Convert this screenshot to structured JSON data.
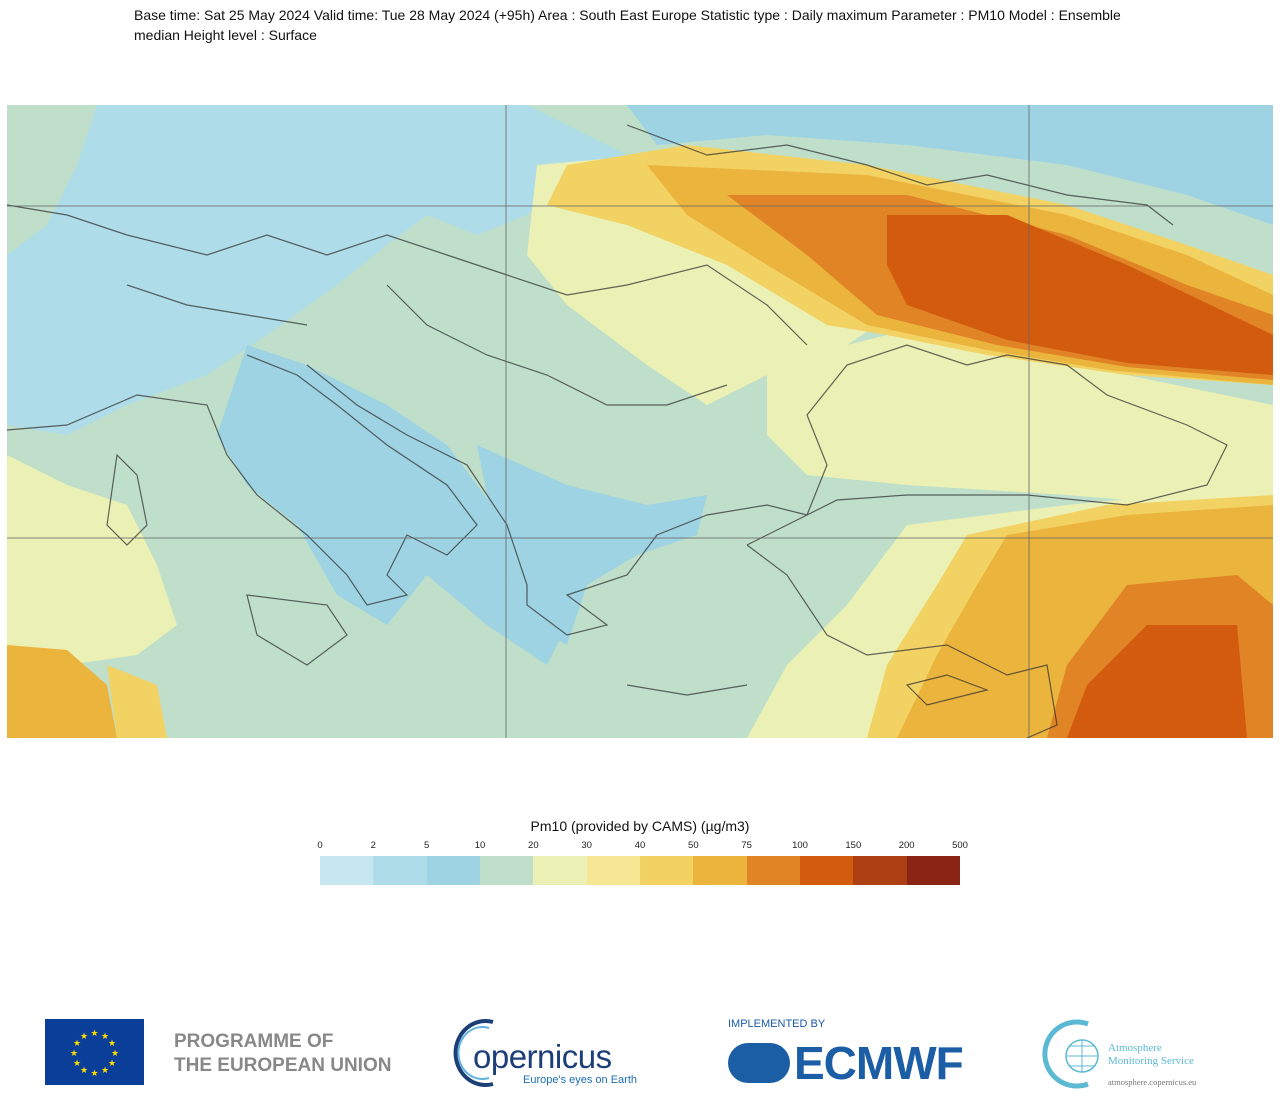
{
  "header": {
    "title": "Base time: Sat 25 May 2024 Valid time: Tue 28 May 2024 (+95h) Area : South East Europe Statistic type : Daily maximum Parameter : PM10 Model : Ensemble median Height level : Surface"
  },
  "legend": {
    "title": "Pm10 (provided by CAMS) (µg/m3)",
    "ticks": [
      "0",
      "2",
      "5",
      "10",
      "20",
      "30",
      "40",
      "50",
      "75",
      "100",
      "150",
      "200",
      "500"
    ],
    "colors": [
      "#c6e6f0",
      "#aedce8",
      "#9dd3e2",
      "#bfdfcb",
      "#ebf0b5",
      "#f7e795",
      "#f3d264",
      "#ebb43c",
      "#e08426",
      "#d35b0e",
      "#ac4012",
      "#8a2515"
    ]
  },
  "footer": {
    "eu_line1": "PROGRAMME OF",
    "eu_line2": "THE EUROPEAN UNION",
    "copernicus_word": "opernicus",
    "copernicus_tagline": "Europe's eyes on Earth",
    "implemented_by": "IMPLEMENTED BY",
    "ecmwf": "ECMWF",
    "ams_line1": "Atmosphere",
    "ams_line2": "Monitoring Service",
    "ams_url": "atmosphere.copernicus.eu"
  }
}
